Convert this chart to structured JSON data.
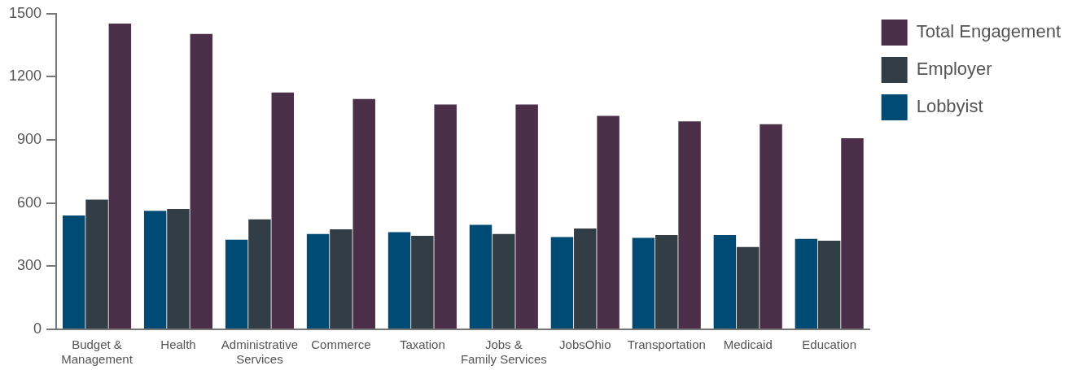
{
  "chart_data": {
    "type": "bar",
    "categories": [
      "Budget &\nManagement",
      "Health",
      "Administrative\nServices",
      "Commerce",
      "Taxation",
      "Jobs &\nFamily Services",
      "JobsOhio",
      "Transportation",
      "Medicaid",
      "Education"
    ],
    "series": [
      {
        "name": "Lobbyist",
        "color": "#004a76",
        "values": [
          541,
          563,
          426,
          453,
          462,
          497,
          439,
          435,
          448,
          430
        ]
      },
      {
        "name": "Employer",
        "color": "#323d46",
        "values": [
          616,
          572,
          523,
          475,
          444,
          453,
          479,
          448,
          391,
          421
        ]
      },
      {
        "name": "Total Engagement",
        "color": "#4b2f48",
        "values": [
          1453,
          1404,
          1125,
          1094,
          1068,
          1068,
          1014,
          988,
          975,
          908
        ]
      }
    ],
    "ylim": [
      0,
      1500
    ],
    "yticks": [
      0,
      300,
      600,
      900,
      1200,
      1500
    ],
    "grid": false,
    "legend": "top right"
  }
}
